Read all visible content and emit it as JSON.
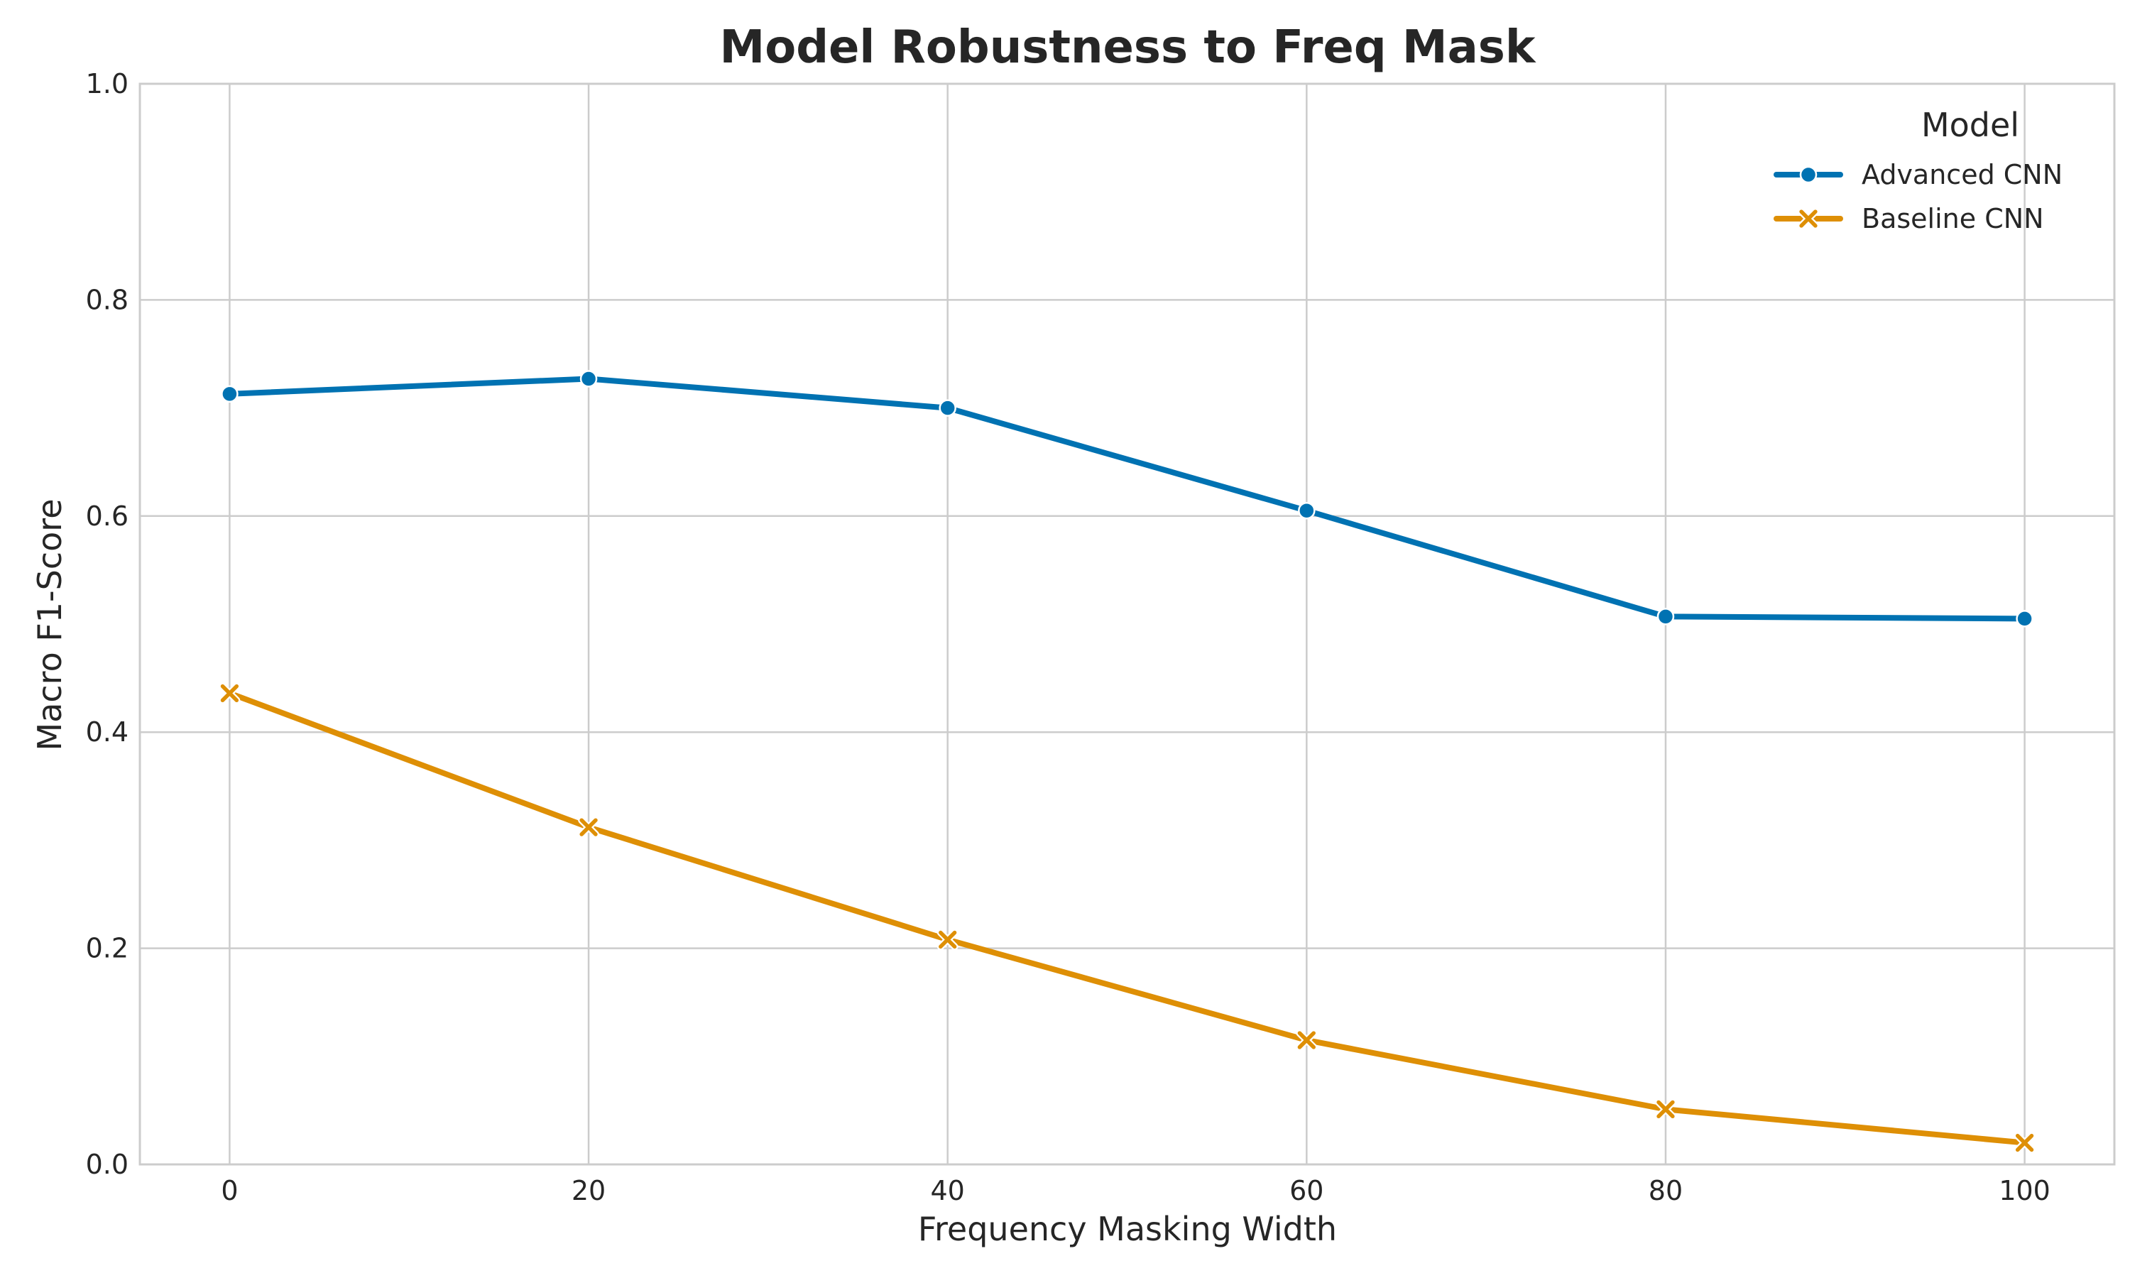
{
  "chart_data": {
    "type": "line",
    "title": "Model Robustness to Freq Mask",
    "xlabel": "Frequency Masking Width",
    "ylabel": "Macro F1-Score",
    "x": [
      0,
      20,
      40,
      60,
      80,
      100
    ],
    "x_ticks": [
      "0",
      "20",
      "40",
      "60",
      "80",
      "100"
    ],
    "xlim": [
      -5,
      105
    ],
    "ylim": [
      0.0,
      1.0
    ],
    "y_ticks": [
      "0.0",
      "0.2",
      "0.4",
      "0.6",
      "0.8",
      "1.0"
    ],
    "grid": true,
    "legend": {
      "title": "Model",
      "placement": "top-right"
    },
    "series": [
      {
        "name": "Advanced CNN",
        "marker": "circle",
        "color": "#0072B2",
        "values": [
          0.713,
          0.727,
          0.7,
          0.605,
          0.507,
          0.505
        ]
      },
      {
        "name": "Baseline CNN",
        "marker": "x",
        "color": "#DE8F05",
        "values": [
          0.436,
          0.312,
          0.208,
          0.115,
          0.051,
          0.02
        ]
      }
    ]
  }
}
